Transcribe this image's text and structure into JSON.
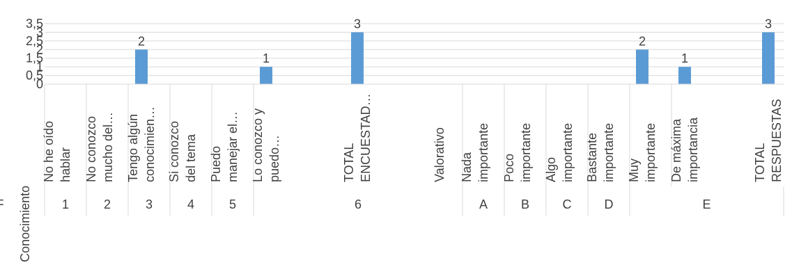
{
  "chart_data": {
    "type": "bar",
    "ylim": [
      0,
      3.5
    ],
    "yticks": [
      "0",
      "0,5",
      "1",
      "1,5",
      "2",
      "2,5",
      "3",
      "3,5"
    ],
    "grid": true,
    "legend": "none",
    "bar_color": "#5b9bd5",
    "categories": [
      {
        "label": [
          "No he oído",
          "hablar"
        ],
        "value": 0
      },
      {
        "label": [
          "No conozco",
          "mucho del…"
        ],
        "value": 0
      },
      {
        "label": [
          "Tengo algún",
          "conocimien…"
        ],
        "value": 2
      },
      {
        "label": [
          "Si conozco",
          "del tema"
        ],
        "value": 0
      },
      {
        "label": [
          "Puedo",
          "manejar el…"
        ],
        "value": 0
      },
      {
        "label": [
          "Lo conozco y",
          "puedo…"
        ],
        "value": 1
      },
      {
        "label": [],
        "value": 0
      },
      {
        "label": [],
        "value": 0
      },
      {
        "label": [
          "TOTAL",
          "ENCUESTAD…"
        ],
        "value": 3
      },
      {
        "label": [],
        "value": 0
      },
      {
        "label": [],
        "value": 0
      },
      {
        "label": [
          "Valorativo"
        ],
        "value": 0
      },
      {
        "label": [],
        "value": 0
      },
      {
        "label": [
          "Nada",
          "importante"
        ],
        "value": 0
      },
      {
        "label": [
          "Poco",
          "importante"
        ],
        "value": 0
      },
      {
        "label": [
          "Algo",
          "importante"
        ],
        "value": 0
      },
      {
        "label": [
          "Bastante",
          "importante"
        ],
        "value": 0
      },
      {
        "label": [
          "Muy",
          "importante"
        ],
        "value": 2
      },
      {
        "label": [
          "De máxima",
          "importancia"
        ],
        "value": 1
      },
      {
        "label": [],
        "value": 0
      },
      {
        "label": [
          "TOTAL",
          "RESPUESTAS"
        ],
        "value": 3
      }
    ],
    "groups": [
      {
        "label": "1"
      },
      {
        "label": "2"
      },
      {
        "label": "3"
      },
      {
        "label": "4"
      },
      {
        "label": "5"
      },
      {
        "label": "6"
      },
      {
        "label": "A"
      },
      {
        "label": "B"
      },
      {
        "label": "C"
      },
      {
        "label": "D"
      },
      {
        "label": "E"
      },
      {
        "label": "F"
      }
    ],
    "outer_label": "Conocimiento"
  }
}
